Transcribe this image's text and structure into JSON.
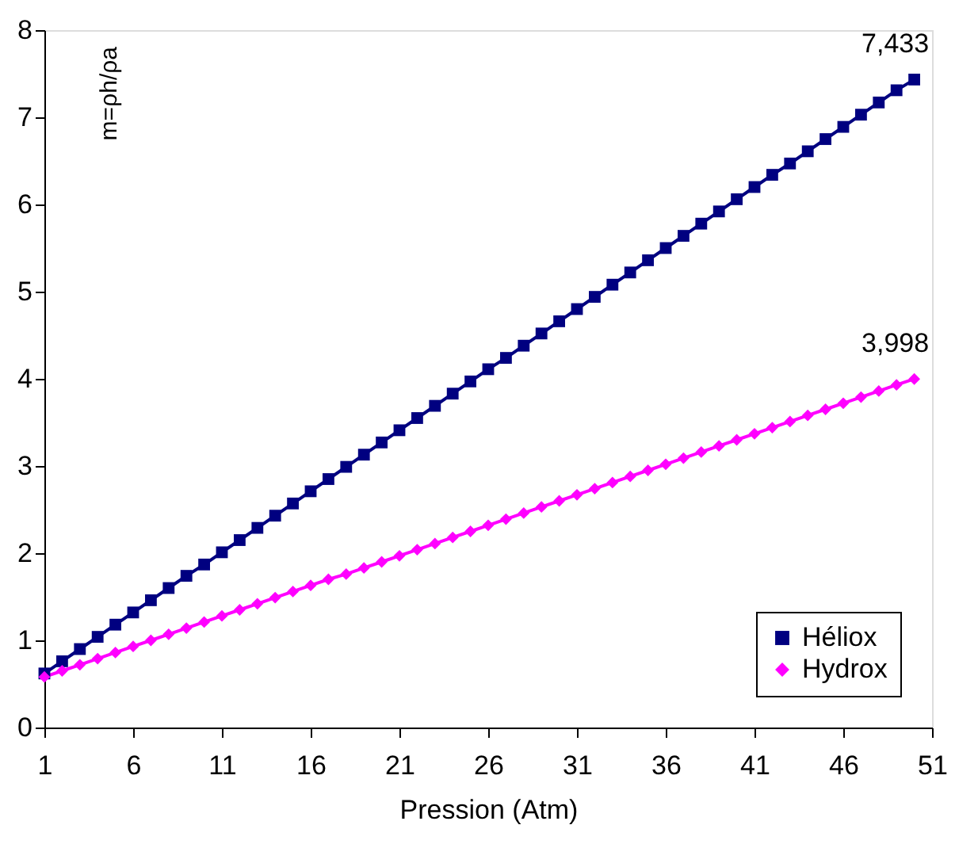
{
  "chart_data": {
    "type": "line",
    "xlabel": "Pression (Atm)",
    "ylabel": "m=ρh/ρa",
    "x": [
      1,
      2,
      3,
      4,
      5,
      6,
      7,
      8,
      9,
      10,
      11,
      12,
      13,
      14,
      15,
      16,
      17,
      18,
      19,
      20,
      21,
      22,
      23,
      24,
      25,
      26,
      27,
      28,
      29,
      30,
      31,
      32,
      33,
      34,
      35,
      36,
      37,
      38,
      39,
      40,
      41,
      42,
      43,
      44,
      45,
      46,
      47,
      48,
      49,
      50
    ],
    "series": [
      {
        "name": "Héliox",
        "color": "#000080",
        "marker": "square",
        "values": [
          0.62,
          0.76,
          0.9,
          1.04,
          1.18,
          1.32,
          1.46,
          1.6,
          1.74,
          1.87,
          2.01,
          2.15,
          2.29,
          2.43,
          2.57,
          2.71,
          2.85,
          2.99,
          3.13,
          3.27,
          3.41,
          3.55,
          3.69,
          3.83,
          3.97,
          4.11,
          4.24,
          4.38,
          4.52,
          4.66,
          4.8,
          4.94,
          5.08,
          5.22,
          5.36,
          5.5,
          5.64,
          5.78,
          5.92,
          6.06,
          6.2,
          6.34,
          6.47,
          6.61,
          6.75,
          6.89,
          7.03,
          7.17,
          7.31,
          7.433
        ]
      },
      {
        "name": "Hydrox",
        "color": "#ff00ff",
        "marker": "diamond",
        "values": [
          0.58,
          0.65,
          0.72,
          0.79,
          0.86,
          0.93,
          1.0,
          1.07,
          1.14,
          1.21,
          1.28,
          1.35,
          1.42,
          1.49,
          1.56,
          1.63,
          1.7,
          1.76,
          1.83,
          1.9,
          1.97,
          2.04,
          2.11,
          2.18,
          2.25,
          2.32,
          2.39,
          2.46,
          2.53,
          2.6,
          2.67,
          2.74,
          2.81,
          2.88,
          2.95,
          3.02,
          3.09,
          3.16,
          3.23,
          3.3,
          3.37,
          3.44,
          3.51,
          3.58,
          3.65,
          3.72,
          3.79,
          3.86,
          3.93,
          3.998
        ]
      }
    ],
    "xlim": [
      1,
      51
    ],
    "xticks": [
      1,
      6,
      11,
      16,
      21,
      26,
      31,
      36,
      41,
      46,
      51
    ],
    "ylim": [
      0,
      8
    ],
    "yticks": [
      0,
      1,
      2,
      3,
      4,
      5,
      6,
      7,
      8
    ],
    "annotations": [
      {
        "text": "7,433",
        "x": 50,
        "y": 7.433
      },
      {
        "text": "3,998",
        "x": 50,
        "y": 3.998
      }
    ],
    "grid": false,
    "legend": "bottom right",
    "line_style": "solid"
  }
}
